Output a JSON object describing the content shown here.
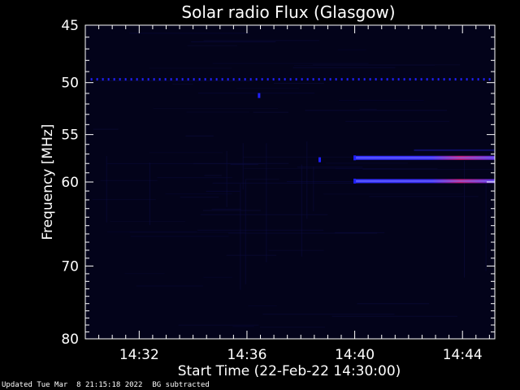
{
  "chart_data": {
    "type": "heatmap",
    "title": "Solar radio Flux (Glasgow)",
    "xlabel": "Start Time (22-Feb-22 14:30:00)",
    "ylabel": "Frequency [MHz]",
    "x_range_minutes": [
      0,
      15.2
    ],
    "x_ticks": [
      {
        "label": "14:32",
        "minute": 2
      },
      {
        "label": "14:36",
        "minute": 6
      },
      {
        "label": "14:40",
        "minute": 10
      },
      {
        "label": "14:44",
        "minute": 14
      }
    ],
    "y_scale": "log",
    "y_range_mhz": [
      45,
      80
    ],
    "y_ticks": [
      45,
      50,
      55,
      60,
      70,
      80
    ],
    "background_color": "#03031a",
    "emission_color": "#2020ff",
    "peak_color": "#d02070",
    "features": [
      {
        "name": "50 MHz interference line",
        "freq_mhz": 49.7,
        "t_start_minute": 0.2,
        "t_end_minute": 15.1,
        "style": "dashed"
      },
      {
        "name": "emission band upper",
        "freq_mhz": 57.4,
        "t_start_minute": 10.0,
        "t_end_minute": 15.2,
        "style": "band"
      },
      {
        "name": "emission band lower",
        "freq_mhz": 59.9,
        "t_start_minute": 10.0,
        "t_end_minute": 15.2,
        "style": "band"
      },
      {
        "name": "band",
        "freq_mhz": 56.6,
        "t_start_minute": 12.2,
        "t_end_minute": 15.2,
        "style": "faint"
      }
    ]
  },
  "footer": {
    "updated": "Updated Tue Mar  8 21:15:18 2022",
    "note": "BG subtracted"
  }
}
